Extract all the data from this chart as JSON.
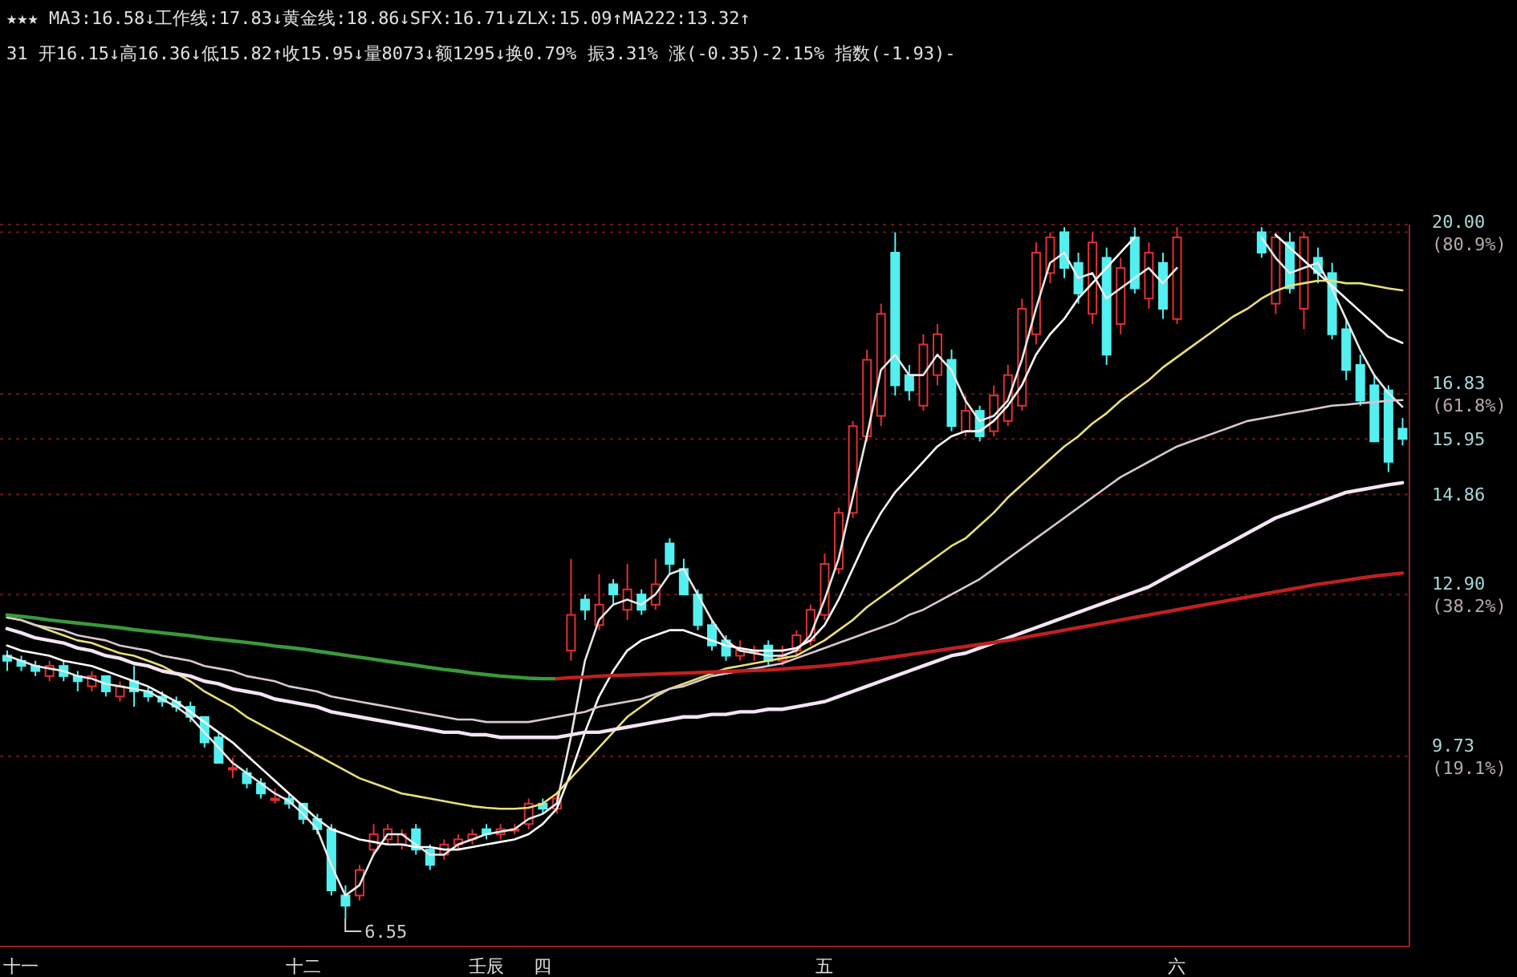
{
  "chart_data": {
    "type": "candlestick",
    "categories": [
      null,
      "十一",
      null,
      null,
      null,
      null,
      null,
      null,
      null,
      null,
      null,
      null,
      null,
      null,
      null,
      null,
      null,
      null,
      null,
      null,
      null,
      "十二",
      null,
      null,
      null,
      null,
      null,
      null,
      null,
      null,
      null,
      null,
      null,
      null,
      "壬辰",
      null,
      null,
      null,
      "四",
      null,
      null,
      null,
      null,
      null,
      null,
      null,
      null,
      null,
      null,
      null,
      null,
      null,
      null,
      null,
      null,
      null,
      null,
      null,
      "五",
      null,
      null,
      null,
      null,
      null,
      null,
      null,
      null,
      null,
      null,
      null,
      null,
      null,
      null,
      null,
      null,
      null,
      null,
      null,
      null,
      null,
      null,
      null,
      null,
      "六",
      null,
      null,
      null,
      null,
      null,
      null,
      null,
      null,
      null,
      null,
      null,
      null,
      null,
      null,
      null,
      null
    ],
    "ohlc": [
      [
        11.7,
        11.8,
        11.4,
        11.6
      ],
      [
        11.6,
        11.7,
        11.4,
        11.5
      ],
      [
        11.5,
        11.6,
        11.3,
        11.4
      ],
      [
        11.3,
        11.6,
        11.2,
        11.5
      ],
      [
        11.5,
        11.6,
        11.2,
        11.3
      ],
      [
        11.3,
        11.4,
        11.0,
        11.2
      ],
      [
        11.1,
        11.4,
        11.0,
        11.3
      ],
      [
        11.3,
        11.3,
        10.9,
        11.0
      ],
      [
        10.9,
        11.2,
        10.8,
        11.1
      ],
      [
        11.2,
        11.5,
        10.7,
        11.0
      ],
      [
        11.0,
        11.1,
        10.8,
        10.9
      ],
      [
        10.9,
        11.0,
        10.7,
        10.8
      ],
      [
        10.8,
        10.9,
        10.6,
        10.7
      ],
      [
        10.7,
        10.8,
        10.4,
        10.5
      ],
      [
        10.5,
        10.5,
        9.9,
        10.0
      ],
      [
        10.1,
        10.2,
        9.6,
        9.6
      ],
      [
        9.5,
        9.7,
        9.3,
        9.5
      ],
      [
        9.4,
        9.5,
        9.1,
        9.2
      ],
      [
        9.2,
        9.3,
        8.9,
        9.0
      ],
      [
        8.9,
        9.1,
        8.8,
        8.9
      ],
      [
        8.9,
        9.0,
        8.7,
        8.8
      ],
      [
        8.8,
        8.8,
        8.4,
        8.5
      ],
      [
        8.5,
        8.6,
        8.2,
        8.3
      ],
      [
        8.3,
        8.4,
        7.0,
        7.1
      ],
      [
        7.0,
        7.2,
        6.55,
        6.8
      ],
      [
        7.0,
        7.6,
        6.9,
        7.5
      ],
      [
        7.9,
        8.4,
        7.8,
        8.2
      ],
      [
        8.1,
        8.4,
        8.0,
        8.3
      ],
      [
        8.0,
        8.3,
        7.9,
        8.2
      ],
      [
        8.3,
        8.4,
        7.8,
        7.9
      ],
      [
        7.9,
        8.0,
        7.5,
        7.6
      ],
      [
        7.8,
        8.1,
        7.7,
        8.0
      ],
      [
        8.0,
        8.2,
        7.9,
        8.1
      ],
      [
        8.1,
        8.3,
        8.0,
        8.2
      ],
      [
        8.3,
        8.4,
        8.1,
        8.2
      ],
      [
        8.2,
        8.4,
        8.1,
        8.3
      ],
      [
        8.3,
        8.4,
        8.2,
        8.3
      ],
      [
        8.4,
        8.9,
        8.3,
        8.8
      ],
      [
        8.8,
        8.9,
        8.6,
        8.7
      ],
      [
        8.7,
        9.0,
        8.6,
        8.9
      ],
      [
        11.8,
        13.6,
        11.6,
        12.5
      ],
      [
        12.8,
        12.9,
        12.4,
        12.6
      ],
      [
        12.3,
        13.3,
        12.2,
        12.7
      ],
      [
        13.1,
        13.2,
        12.7,
        12.9
      ],
      [
        12.6,
        13.5,
        12.4,
        13.0
      ],
      [
        12.9,
        13.0,
        12.5,
        12.6
      ],
      [
        12.7,
        13.6,
        12.6,
        13.1
      ],
      [
        13.9,
        14.0,
        13.3,
        13.5
      ],
      [
        13.4,
        13.6,
        12.9,
        12.9
      ],
      [
        12.9,
        13.0,
        12.2,
        12.3
      ],
      [
        12.3,
        12.4,
        11.8,
        11.9
      ],
      [
        12.0,
        12.1,
        11.6,
        11.7
      ],
      [
        11.7,
        12.0,
        11.6,
        11.8
      ],
      [
        11.8,
        11.9,
        11.6,
        11.8
      ],
      [
        11.9,
        12.0,
        11.5,
        11.6
      ],
      [
        11.6,
        11.9,
        11.5,
        11.7
      ],
      [
        11.8,
        12.2,
        11.7,
        12.1
      ],
      [
        12.0,
        12.7,
        11.9,
        12.6
      ],
      [
        12.5,
        13.7,
        12.4,
        13.5
      ],
      [
        13.4,
        14.6,
        13.3,
        14.5
      ],
      [
        14.5,
        16.3,
        14.4,
        16.2
      ],
      [
        16.0,
        17.7,
        15.9,
        17.5
      ],
      [
        16.4,
        18.6,
        16.2,
        18.4
      ],
      [
        19.6,
        20.0,
        16.8,
        17.0
      ],
      [
        17.2,
        17.4,
        16.7,
        16.9
      ],
      [
        16.6,
        18.0,
        16.5,
        17.8
      ],
      [
        17.2,
        18.2,
        17.0,
        18.0
      ],
      [
        17.5,
        17.7,
        16.1,
        16.2
      ],
      [
        16.1,
        16.8,
        16.0,
        16.5
      ],
      [
        16.5,
        16.6,
        15.9,
        16.0
      ],
      [
        16.1,
        17.0,
        16.0,
        16.8
      ],
      [
        16.3,
        17.4,
        16.2,
        17.2
      ],
      [
        16.6,
        18.7,
        16.5,
        18.5
      ],
      [
        18.0,
        19.8,
        17.8,
        19.6
      ],
      [
        19.2,
        20.0,
        19.0,
        19.9
      ],
      [
        20.0,
        20.1,
        19.1,
        19.3
      ],
      [
        19.4,
        19.6,
        18.6,
        18.8
      ],
      [
        18.4,
        20.0,
        18.2,
        19.8
      ],
      [
        19.5,
        19.7,
        17.4,
        17.6
      ],
      [
        18.2,
        19.5,
        18.0,
        19.3
      ],
      [
        19.9,
        20.1,
        18.8,
        18.9
      ],
      [
        18.7,
        19.8,
        18.5,
        19.6
      ],
      [
        19.4,
        19.6,
        18.3,
        18.5
      ],
      [
        18.3,
        20.1,
        18.2,
        19.9
      ],
      null,
      null,
      null,
      null,
      null,
      [
        20.0,
        20.1,
        19.5,
        19.6
      ],
      [
        18.6,
        20.0,
        18.4,
        19.9
      ],
      [
        19.8,
        20.0,
        18.8,
        18.9
      ],
      [
        18.5,
        20.0,
        18.1,
        19.9
      ],
      [
        19.5,
        19.7,
        19.0,
        19.2
      ],
      [
        19.2,
        19.4,
        17.9,
        18.0
      ],
      [
        18.1,
        18.3,
        17.1,
        17.3
      ],
      [
        17.4,
        17.6,
        16.6,
        16.7
      ],
      [
        17.0,
        17.2,
        15.9,
        15.9
      ],
      [
        16.9,
        17.0,
        15.3,
        15.5
      ],
      [
        16.15,
        16.36,
        15.82,
        15.95
      ]
    ],
    "series": [
      {
        "type": "line",
        "color": "#e8e8e8",
        "values": [
          11.7,
          11.6,
          11.5,
          11.45,
          11.4,
          11.3,
          11.25,
          11.15,
          11.1,
          11.05,
          11.0,
          10.85,
          10.7,
          10.5,
          10.2,
          9.9,
          9.6,
          9.4,
          9.2,
          9.0,
          8.85,
          8.6,
          8.3,
          7.6,
          7.0,
          7.2,
          7.8,
          8.2,
          8.2,
          8.0,
          7.8,
          7.8,
          8.0,
          8.1,
          8.2,
          8.25,
          8.3,
          8.5,
          8.6,
          8.8,
          10.1,
          11.6,
          12.4,
          12.7,
          12.8,
          12.7,
          12.9,
          13.3,
          13.4,
          12.9,
          12.4,
          12.0,
          11.8,
          11.75,
          11.7,
          11.7,
          11.8,
          12.1,
          12.8,
          13.6,
          14.8,
          16.0,
          17.3,
          17.6,
          17.2,
          17.2,
          17.6,
          17.3,
          16.7,
          16.3,
          16.4,
          16.7,
          17.5,
          18.5,
          19.4,
          19.6,
          19.1,
          19.2,
          18.7,
          18.9,
          19.1,
          19.3,
          19.0,
          19.3,
          null,
          null,
          null,
          null,
          null,
          19.9,
          19.5,
          19.2,
          19.3,
          19.4,
          18.9,
          18.3,
          17.7,
          17.2,
          16.85,
          16.58
        ]
      },
      {
        "type": "line",
        "color": "#ffffff",
        "values": [
          11.9,
          11.8,
          11.75,
          11.7,
          11.6,
          11.55,
          11.5,
          11.4,
          11.3,
          11.2,
          11.1,
          10.95,
          10.8,
          10.6,
          10.4,
          10.2,
          10.0,
          9.75,
          9.5,
          9.25,
          9.0,
          8.75,
          8.5,
          8.3,
          8.2,
          8.1,
          8.05,
          8.0,
          8.0,
          7.95,
          7.95,
          7.9,
          7.9,
          7.95,
          8.0,
          8.05,
          8.1,
          8.2,
          8.4,
          8.7,
          9.4,
          10.2,
          10.9,
          11.4,
          11.8,
          12.0,
          12.1,
          12.2,
          12.2,
          12.1,
          12.0,
          11.9,
          11.85,
          11.8,
          11.8,
          11.8,
          11.85,
          12.0,
          12.3,
          12.8,
          13.4,
          14.0,
          14.5,
          14.9,
          15.2,
          15.5,
          15.8,
          16.0,
          16.1,
          16.1,
          16.3,
          16.6,
          17.0,
          17.6,
          18.0,
          18.3,
          18.7,
          19.0,
          19.3,
          19.6,
          19.9,
          null,
          null,
          null,
          null,
          null,
          null,
          null,
          null,
          null,
          19.95,
          19.7,
          19.45,
          19.2,
          18.95,
          18.7,
          18.45,
          18.2,
          17.95,
          17.83
        ]
      },
      {
        "type": "line",
        "color": "#e8e07a",
        "values": [
          12.45,
          12.4,
          12.3,
          12.2,
          12.1,
          12.0,
          11.95,
          11.85,
          11.75,
          11.7,
          11.6,
          11.5,
          11.35,
          11.2,
          11.0,
          10.85,
          10.7,
          10.5,
          10.35,
          10.2,
          10.05,
          9.9,
          9.75,
          9.6,
          9.45,
          9.3,
          9.2,
          9.1,
          9.0,
          8.95,
          8.9,
          8.85,
          8.8,
          8.75,
          8.72,
          8.7,
          8.7,
          8.72,
          8.8,
          9.0,
          9.3,
          9.6,
          9.9,
          10.2,
          10.5,
          10.7,
          10.9,
          11.05,
          11.15,
          11.25,
          11.35,
          11.45,
          11.5,
          11.55,
          11.6,
          11.65,
          11.7,
          11.85,
          12.0,
          12.2,
          12.4,
          12.65,
          12.85,
          13.05,
          13.25,
          13.45,
          13.65,
          13.85,
          14.0,
          14.25,
          14.5,
          14.8,
          15.05,
          15.3,
          15.55,
          15.8,
          16.0,
          16.25,
          16.45,
          16.7,
          16.9,
          17.1,
          17.35,
          17.55,
          17.75,
          17.95,
          18.15,
          18.35,
          18.5,
          18.7,
          18.85,
          18.95,
          19.0,
          19.05,
          19.05,
          19.0,
          19.0,
          18.95,
          18.9,
          18.86
        ]
      },
      {
        "type": "line",
        "color": "#d8c8d0",
        "values": [
          12.45,
          12.4,
          12.3,
          12.25,
          12.2,
          12.1,
          12.05,
          12.0,
          11.9,
          11.85,
          11.8,
          11.7,
          11.65,
          11.6,
          11.5,
          11.45,
          11.4,
          11.3,
          11.25,
          11.2,
          11.1,
          11.05,
          11.0,
          10.9,
          10.85,
          10.8,
          10.75,
          10.7,
          10.65,
          10.6,
          10.55,
          10.5,
          10.45,
          10.45,
          10.4,
          10.4,
          10.4,
          10.4,
          10.45,
          10.5,
          10.55,
          10.6,
          10.7,
          10.75,
          10.8,
          10.85,
          10.95,
          11.05,
          11.1,
          11.2,
          11.3,
          11.35,
          11.4,
          11.45,
          11.5,
          11.55,
          11.65,
          11.75,
          11.85,
          11.95,
          12.05,
          12.15,
          12.25,
          12.35,
          12.5,
          12.6,
          12.75,
          12.9,
          13.05,
          13.2,
          13.4,
          13.6,
          13.8,
          14.0,
          14.2,
          14.4,
          14.6,
          14.8,
          15.0,
          15.2,
          15.35,
          15.5,
          15.65,
          15.8,
          15.9,
          16.0,
          16.1,
          16.2,
          16.3,
          16.35,
          16.4,
          16.45,
          16.5,
          16.55,
          16.6,
          16.62,
          16.65,
          16.67,
          16.7,
          16.71
        ]
      },
      {
        "type": "line",
        "color": "#f4e4f4",
        "values": [
          12.23,
          12.15,
          12.05,
          12.0,
          11.95,
          11.85,
          11.8,
          11.7,
          11.65,
          11.55,
          11.5,
          11.4,
          11.35,
          11.3,
          11.2,
          11.15,
          11.05,
          11.0,
          10.95,
          10.85,
          10.8,
          10.75,
          10.7,
          10.6,
          10.55,
          10.5,
          10.45,
          10.4,
          10.35,
          10.3,
          10.25,
          10.2,
          10.2,
          10.15,
          10.15,
          10.1,
          10.1,
          10.1,
          10.1,
          10.1,
          10.15,
          10.2,
          10.2,
          10.25,
          10.3,
          10.35,
          10.4,
          10.45,
          10.5,
          10.5,
          10.55,
          10.55,
          10.6,
          10.6,
          10.65,
          10.65,
          10.7,
          10.75,
          10.8,
          10.9,
          11.0,
          11.1,
          11.2,
          11.3,
          11.4,
          11.5,
          11.6,
          11.7,
          11.75,
          11.85,
          11.95,
          12.05,
          12.15,
          12.25,
          12.35,
          12.45,
          12.55,
          12.65,
          12.75,
          12.85,
          12.95,
          13.05,
          13.2,
          13.35,
          13.5,
          13.65,
          13.8,
          13.95,
          14.1,
          14.25,
          14.4,
          14.5,
          14.6,
          14.7,
          14.8,
          14.9,
          14.95,
          15.0,
          15.05,
          15.09
        ]
      },
      {
        "type": "line",
        "color": "#3a9a3a",
        "values": [
          12.5,
          12.47,
          12.44,
          12.4,
          12.37,
          12.34,
          12.31,
          12.28,
          12.25,
          12.21,
          12.18,
          12.15,
          12.12,
          12.09,
          12.05,
          12.02,
          11.99,
          11.96,
          11.93,
          11.89,
          11.86,
          11.83,
          11.79,
          11.75,
          11.71,
          11.67,
          11.63,
          11.59,
          11.55,
          11.51,
          11.47,
          11.43,
          11.4,
          11.36,
          11.33,
          11.3,
          11.28,
          11.26,
          11.25,
          11.25,
          null,
          null,
          null,
          null,
          null,
          null,
          null,
          null,
          null,
          null,
          null,
          null,
          null,
          null,
          null,
          null,
          null,
          null,
          null,
          null,
          null,
          null,
          null,
          null,
          null,
          null,
          null,
          null,
          null,
          null,
          null,
          null,
          null,
          null,
          null,
          null,
          null,
          null,
          null,
          null,
          null,
          null,
          null,
          null,
          null,
          null,
          null,
          null,
          null,
          null,
          null,
          null,
          null,
          null,
          null,
          null,
          null,
          null,
          null,
          null
        ]
      },
      {
        "type": "line",
        "color": "#c02020",
        "values": [
          null,
          null,
          null,
          null,
          null,
          null,
          null,
          null,
          null,
          null,
          null,
          null,
          null,
          null,
          null,
          null,
          null,
          null,
          null,
          null,
          null,
          null,
          null,
          null,
          null,
          null,
          null,
          null,
          null,
          null,
          null,
          null,
          null,
          null,
          null,
          null,
          null,
          null,
          null,
          11.25,
          11.27,
          11.28,
          11.3,
          11.31,
          11.32,
          11.33,
          11.34,
          11.35,
          11.36,
          11.37,
          11.38,
          11.39,
          11.4,
          11.41,
          11.42,
          11.44,
          11.46,
          11.48,
          11.5,
          11.53,
          11.56,
          11.6,
          11.64,
          11.68,
          11.72,
          11.76,
          11.8,
          11.84,
          11.88,
          11.92,
          11.96,
          12.0,
          12.05,
          12.1,
          12.15,
          12.2,
          12.25,
          12.3,
          12.35,
          12.4,
          12.45,
          12.5,
          12.55,
          12.6,
          12.65,
          12.7,
          12.75,
          12.8,
          12.85,
          12.9,
          12.95,
          13.0,
          13.05,
          13.1,
          13.14,
          13.18,
          13.22,
          13.26,
          13.29,
          13.32
        ]
      }
    ],
    "ylim": [
      6.0,
      20.15
    ],
    "yticks": [
      {
        "value": 20,
        "label": "20.00 (80.9%)"
      },
      {
        "value": 16.83,
        "label": "16.83 (61.8%)"
      },
      {
        "value": 15.95,
        "label": "15.95"
      },
      {
        "value": 14.86,
        "label": "14.86"
      },
      {
        "value": 12.9,
        "label": "12.90 (38.2%)"
      },
      {
        "value": 9.73,
        "label": "9.73 (19.1%)"
      }
    ],
    "grid": "y",
    "annotations": [
      "★★★ MA3:16.58↓工作线:17.83↓黄金线:18.86↓SFX:16.71↓ZLX:15.09↑MA222:13.32↑",
      "31 开16.15↓高16.36↓低15.82↑收15.95↓量8073↓额1295↓换0.79% 振3.31% 涨(-0.35)-2.15% 指数(-1.93)-",
      "6.55"
    ]
  }
}
